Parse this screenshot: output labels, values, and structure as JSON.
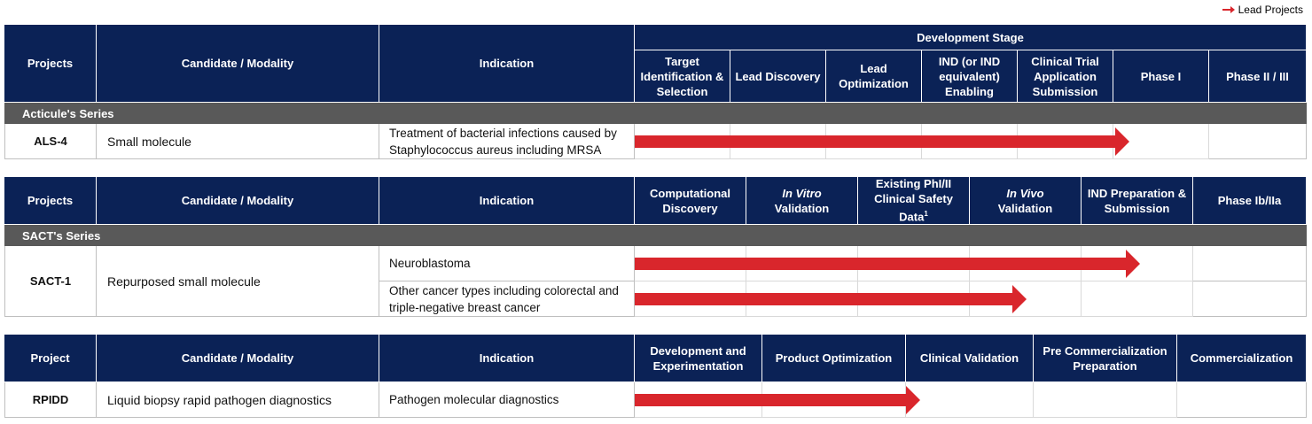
{
  "legend": "Lead Projects",
  "tables": [
    {
      "columns": {
        "projects": "Projects",
        "candidate": "Candidate / Modality",
        "indication": "Indication"
      },
      "stage_group": "Development Stage",
      "stages": [
        "Target Identification & Selection",
        "Lead Discovery",
        "Lead Optimization",
        "IND (or IND equivalent) Enabling",
        "Clinical Trial Application Submission",
        "Phase I",
        "Phase II / III"
      ],
      "series": "Acticule's Series",
      "rows": [
        {
          "project": "ALS-4",
          "candidate": "Small molecule",
          "indications": [
            "Treatment of bacterial infections caused by Staphylococcus aureus including MRSA"
          ]
        }
      ]
    },
    {
      "columns": {
        "projects": "Projects",
        "candidate": "Candidate / Modality",
        "indication": "Indication"
      },
      "stages": [
        "Computational Discovery",
        {
          "em": "In Vitro",
          "rest": "Validation"
        },
        {
          "text": "Existing PhI/II Clinical Safety Data",
          "sup": "1"
        },
        {
          "em": "In Vivo",
          "rest": "Validation"
        },
        "IND Preparation & Submission",
        "Phase Ib/IIa"
      ],
      "series": "SACT's Series",
      "rows": [
        {
          "project": "SACT-1",
          "candidate": "Repurposed small molecule",
          "indications": [
            "Neuroblastoma",
            "Other cancer types including colorectal and triple-negative breast cancer"
          ]
        }
      ]
    },
    {
      "columns": {
        "projects": "Project",
        "candidate": "Candidate / Modality",
        "indication": "Indication"
      },
      "stages": [
        "Development and Experimentation",
        "Product Optimization",
        "Clinical Validation",
        "Pre Commercialization Preparation",
        "Commercialization"
      ],
      "rows": [
        {
          "project": "RPIDD",
          "candidate": "Liquid biopsy rapid pathogen diagnostics",
          "indications": [
            "Pathogen molecular diagnostics"
          ]
        }
      ]
    }
  ]
}
